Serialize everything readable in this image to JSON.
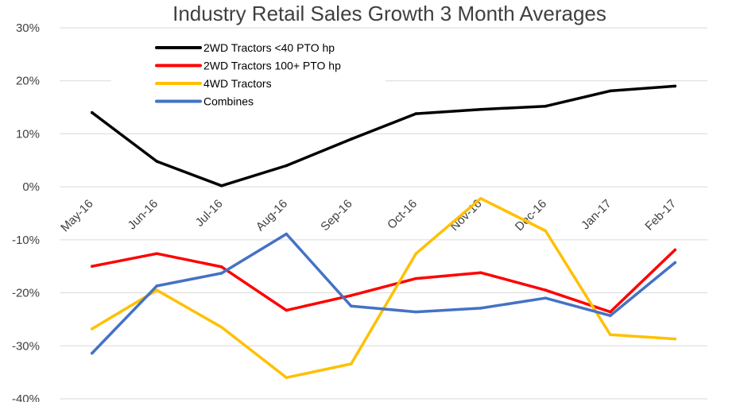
{
  "chart_data": {
    "type": "line",
    "title": "Industry Retail Sales Growth 3 Month Averages",
    "xlabel": "",
    "ylabel": "",
    "categories": [
      "May-16",
      "Jun-16",
      "Jul-16",
      "Aug-16",
      "Sep-16",
      "Oct-16",
      "Nov-16",
      "Dec-16",
      "Jan-17",
      "Feb-17"
    ],
    "ylim": [
      -40,
      30
    ],
    "yticks": [
      {
        "value": 30,
        "label": "30%"
      },
      {
        "value": 20,
        "label": "20%"
      },
      {
        "value": 10,
        "label": "10%"
      },
      {
        "value": 0,
        "label": "0%"
      },
      {
        "value": -10,
        "label": "-10%"
      },
      {
        "value": -20,
        "label": "-20%"
      },
      {
        "value": -30,
        "label": "-30%"
      },
      {
        "value": -40,
        "label": "-40%"
      }
    ],
    "grid": true,
    "legend_position": "top-left",
    "series": [
      {
        "name": "2WD Tractors <40 PTO hp",
        "color": "#000000",
        "values": [
          14,
          4.8,
          0.2,
          4,
          9,
          13.8,
          14.6,
          15.2,
          18.1,
          19
        ]
      },
      {
        "name": "2WD Tractors 100+ PTO hp",
        "color": "#ff0000",
        "values": [
          -15,
          -12.6,
          -15.1,
          -23.3,
          -20.5,
          -17.3,
          -16.2,
          -19.5,
          -23.6,
          -11.9
        ]
      },
      {
        "name": "4WD Tractors",
        "color": "#ffc000",
        "values": [
          -26.8,
          -19.5,
          -26.5,
          -36,
          -33.4,
          -12.6,
          -2.2,
          -8.3,
          -27.9,
          -28.7
        ]
      },
      {
        "name": "Combines",
        "color": "#4472c4",
        "values": [
          -31.4,
          -18.7,
          -16.3,
          -8.9,
          -22.5,
          -23.6,
          -22.9,
          -21,
          -24.3,
          -14.3
        ]
      }
    ]
  }
}
